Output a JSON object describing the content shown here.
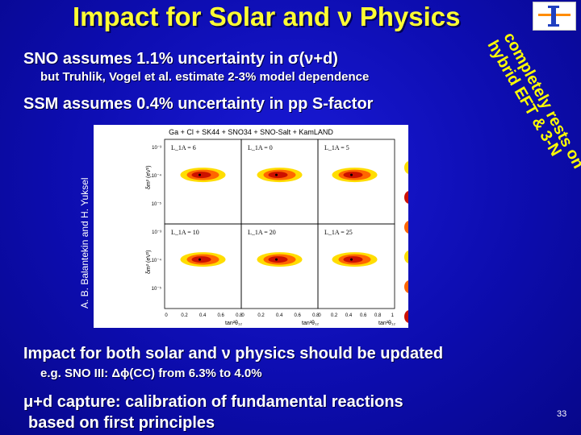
{
  "title": "Impact for Solar and ν Physics",
  "bullets": {
    "sno": "SNO assumes 1.1% uncertainty in σ(ν+d)",
    "sno_sub": "but Truhlik, Vogel et al. estimate 2-3% model dependence",
    "ssm": "SSM assumes 0.4% uncertainty in pp S-factor",
    "impact": "Impact for both solar and ν physics should be updated",
    "impact_sub": "e.g. SNO III: Δϕ(CC) from 6.3% to 4.0%",
    "mu_line1": "μ+d capture: calibration of fundamental reactions",
    "mu_line2": "based on first principles"
  },
  "overlay": {
    "line_a": "completely rests on",
    "line_b": "hybrid EFT & 3-N"
  },
  "credit": "A. B. Balantekin and H. Yuksel",
  "page_number": "33",
  "figure": {
    "header": "Ga + Cl + SK44 + SNO34 + SNO-Salt + KamLAND",
    "panels": [
      "L_1A = 6",
      "L_1A = 0",
      "L_1A = 5",
      "L_1A = 10",
      "L_1A = 20",
      "L_1A = 25"
    ],
    "xlabel": "tan²θ₁₂",
    "ylabel": "δm² (eV²)",
    "xticks": [
      "0",
      "0.2",
      "0.4",
      "0.6",
      "0.8"
    ],
    "xticks_last": [
      "0",
      "0.2",
      "0.4",
      "0.6",
      "0.8",
      "1"
    ],
    "yticks": [
      "10⁻³",
      "10⁻⁴",
      "10⁻⁵"
    ]
  },
  "colors": {
    "background": "#0d0db0",
    "title": "#ffff33",
    "overlay_text": "#ffff00",
    "contour_dark": "#cc1100",
    "contour_mid": "#ff6600",
    "contour_light": "#ffdd00"
  }
}
